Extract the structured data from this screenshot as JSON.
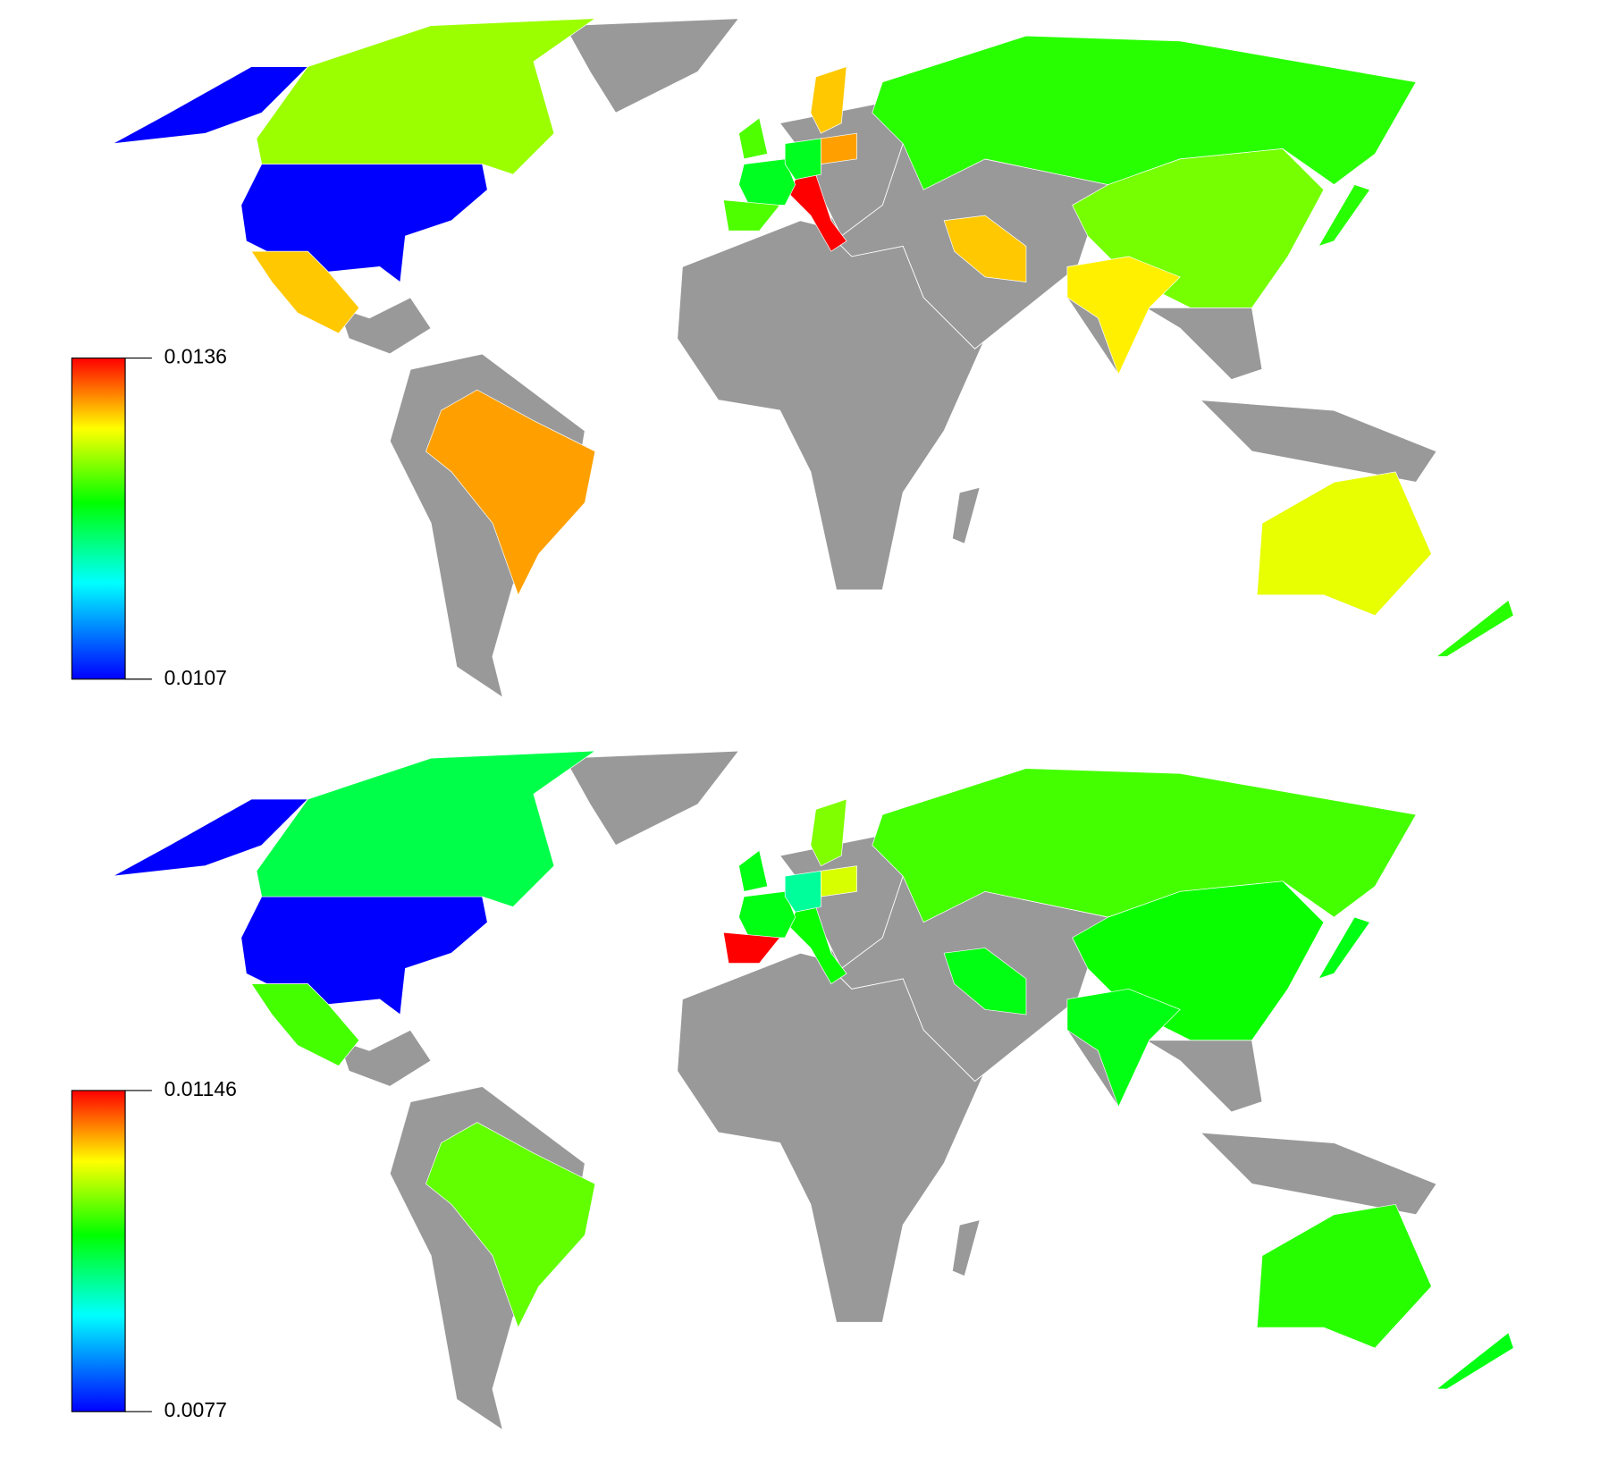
{
  "maps": [
    {
      "colorbar": {
        "ticks": [
          0.0136,
          0.0107
        ]
      },
      "values": [
        0.0107,
        0.0107,
        0.0127,
        0.0131,
        0.0132,
        0.0124,
        0.0126,
        0.013,
        0.0129,
        0.0131,
        0.0136,
        0.0122,
        0.0125,
        0.0122,
        0.0132,
        0.0131,
        0.0125,
        0.0124,
        0.0124
      ]
    },
    {
      "colorbar": {
        "ticks": [
          0.01146,
          0.0077
        ]
      },
      "values": [
        0.0077,
        0.0077,
        0.0095,
        0.01,
        0.0101,
        0.01,
        0.0098,
        0.0097,
        0.0099,
        0.0097,
        0.0098,
        0.0097,
        0.01146,
        0.0092,
        0.0105,
        0.0102,
        0.0097,
        0.0097,
        0.0097
      ]
    }
  ]
}
